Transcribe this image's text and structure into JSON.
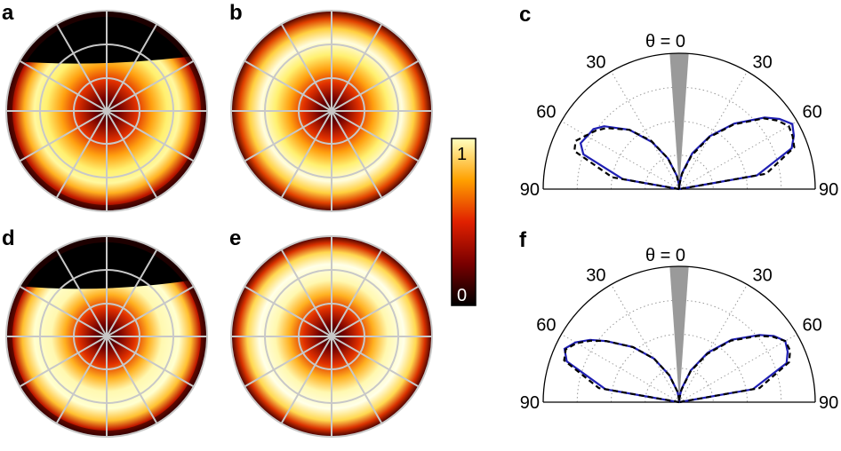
{
  "figure": {
    "panels": [
      {
        "letter": "a",
        "kind": "intensity-map",
        "variant": "measured"
      },
      {
        "letter": "b",
        "kind": "intensity-map",
        "variant": "simulated"
      },
      {
        "letter": "c",
        "kind": "polar-plot"
      },
      {
        "letter": "d",
        "kind": "intensity-map",
        "variant": "measured"
      },
      {
        "letter": "e",
        "kind": "intensity-map",
        "variant": "simulated"
      },
      {
        "letter": "f",
        "kind": "polar-plot"
      }
    ],
    "colorbar": {
      "max_label": "1",
      "min_label": "0"
    },
    "colors": {
      "measured_line": "#1f1fb4",
      "theory_line": "#000000",
      "grid": "#bdbdbd",
      "blocked_sector": "#9a9a9a"
    }
  },
  "chart_data": [
    {
      "type": "line",
      "panel": "c",
      "title": "",
      "axis": {
        "theta_label": "θ = 0",
        "angle_ticks": [
          "30",
          "60",
          "90",
          "30",
          "60",
          "90"
        ],
        "range_deg": [
          -90,
          90
        ]
      },
      "series": [
        {
          "role": "measured",
          "style": "solid",
          "theta": [
            -90,
            -80,
            -70,
            -65,
            -60,
            -55,
            -50,
            -40,
            -30,
            -20,
            -10,
            -5,
            0,
            5,
            10,
            20,
            30,
            40,
            50,
            55,
            60,
            65,
            70,
            80,
            90
          ],
          "r": [
            0.0,
            0.42,
            0.75,
            0.8,
            0.78,
            0.77,
            0.72,
            0.57,
            0.4,
            0.24,
            0.1,
            0.04,
            0.0,
            0.05,
            0.12,
            0.28,
            0.45,
            0.63,
            0.82,
            0.9,
            0.96,
            0.93,
            0.88,
            0.58,
            0.0
          ]
        },
        {
          "role": "theory",
          "style": "dashed",
          "theta": [
            -90,
            -80,
            -70,
            -65,
            -60,
            -55,
            -50,
            -40,
            -30,
            -20,
            -10,
            -5,
            0,
            5,
            10,
            20,
            30,
            40,
            50,
            55,
            60,
            65,
            70,
            80,
            90
          ],
          "r": [
            0.0,
            0.5,
            0.82,
            0.84,
            0.79,
            0.75,
            0.7,
            0.57,
            0.41,
            0.24,
            0.1,
            0.04,
            0.0,
            0.04,
            0.11,
            0.26,
            0.44,
            0.62,
            0.81,
            0.88,
            0.93,
            0.92,
            0.9,
            0.65,
            0.0
          ]
        }
      ]
    },
    {
      "type": "line",
      "panel": "f",
      "title": "",
      "axis": {
        "theta_label": "θ = 0",
        "angle_ticks": [
          "30",
          "60",
          "90",
          "30",
          "60",
          "90"
        ],
        "range_deg": [
          -90,
          90
        ]
      },
      "series": [
        {
          "role": "measured",
          "style": "solid",
          "theta": [
            -90,
            -80,
            -70,
            -65,
            -60,
            -55,
            -50,
            -40,
            -30,
            -20,
            -10,
            -5,
            0,
            5,
            10,
            20,
            30,
            40,
            50,
            55,
            60,
            65,
            70,
            80,
            90
          ],
          "r": [
            0.0,
            0.55,
            0.88,
            0.93,
            0.88,
            0.8,
            0.7,
            0.53,
            0.37,
            0.21,
            0.08,
            0.03,
            0.0,
            0.04,
            0.1,
            0.25,
            0.42,
            0.6,
            0.77,
            0.85,
            0.9,
            0.88,
            0.84,
            0.55,
            0.0
          ]
        },
        {
          "role": "theory",
          "style": "dashed",
          "theta": [
            -90,
            -80,
            -70,
            -65,
            -60,
            -55,
            -50,
            -40,
            -30,
            -20,
            -10,
            -5,
            0,
            5,
            10,
            20,
            30,
            40,
            50,
            55,
            60,
            65,
            70,
            80,
            90
          ],
          "r": [
            0.0,
            0.6,
            0.9,
            0.92,
            0.87,
            0.79,
            0.7,
            0.53,
            0.37,
            0.21,
            0.08,
            0.03,
            0.0,
            0.03,
            0.09,
            0.24,
            0.41,
            0.59,
            0.76,
            0.84,
            0.9,
            0.9,
            0.86,
            0.6,
            0.0
          ]
        }
      ]
    }
  ]
}
